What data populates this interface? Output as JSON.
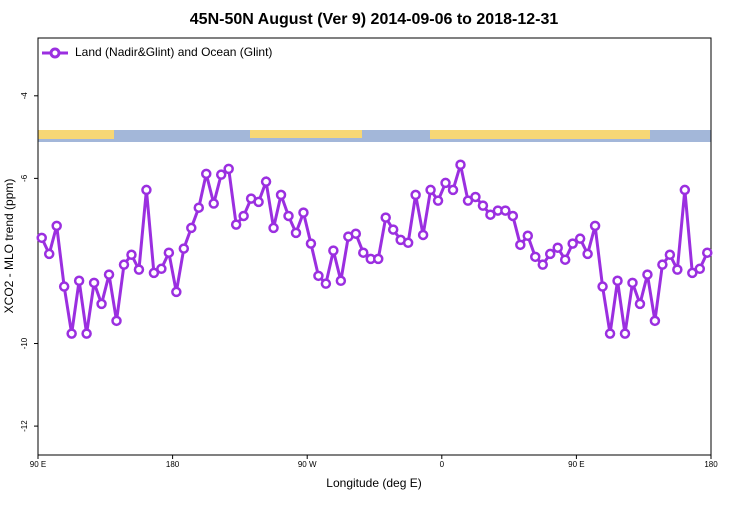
{
  "chart_data": {
    "type": "line",
    "title": "45N-50N August (Ver 9)   2014-09-06 to 2018-12-31",
    "x_label": "Longitude (deg E)",
    "y_label": "XCO2 - MLO trend (ppm)",
    "x": [
      92.5,
      97.5,
      102.5,
      107.5,
      112.5,
      117.5,
      122.5,
      127.5,
      132.5,
      137.5,
      142.5,
      147.5,
      152.5,
      157.5,
      162.5,
      167.5,
      172.5,
      177.5,
      182.5,
      187.5,
      192.5,
      197.5,
      202.5,
      207.5,
      212.5,
      217.5,
      222.5,
      227.5,
      232.5,
      237.5,
      242.5,
      247.5,
      252.5,
      257.5,
      262.5,
      267.5,
      272.5,
      277.5,
      282.5,
      287.5,
      292.5,
      297.5,
      302.5,
      307.5,
      312.5,
      317.5,
      322.5,
      327.5,
      332.5,
      337.5,
      342.5,
      347.5,
      352.5,
      357.5,
      362.5,
      367.5,
      372.5,
      377.5,
      382.5,
      387.5,
      392.5,
      397.5,
      402.5,
      407.5,
      412.5,
      417.5,
      422.5,
      427.5,
      432.5,
      437.5,
      442.5,
      447.5,
      452.5,
      457.5,
      462.5,
      467.5,
      472.5,
      477.5,
      482.5,
      487.5,
      492.5,
      497.5,
      502.5,
      507.5,
      512.5,
      517.5,
      522.5,
      527.5,
      532.5,
      537.5
    ],
    "series": [
      {
        "name": "Land (Nadir&Glint) and Ocean (Glint)",
        "color": "#9b2fe0",
        "values": [
          -7.44,
          -7.83,
          -7.15,
          -8.62,
          -9.76,
          -8.48,
          -9.76,
          -8.53,
          -9.04,
          -8.33,
          -9.45,
          -8.09,
          -7.85,
          -8.21,
          -6.28,
          -8.29,
          -8.19,
          -7.8,
          -8.75,
          -7.7,
          -7.2,
          -6.71,
          -5.89,
          -6.61,
          -5.91,
          -5.77,
          -7.12,
          -6.91,
          -6.49,
          -6.57,
          -6.08,
          -7.2,
          -6.4,
          -6.91,
          -7.32,
          -6.83,
          -7.58,
          -8.36,
          -8.55,
          -7.75,
          -8.48,
          -7.41,
          -7.34,
          -7.8,
          -7.95,
          -7.95,
          -6.95,
          -7.24,
          -7.49,
          -7.56,
          -6.4,
          -7.37,
          -6.28,
          -6.54,
          -6.11,
          -6.28,
          -5.67,
          -6.54,
          -6.45,
          -6.66,
          -6.88,
          -6.78,
          -6.78,
          -6.91,
          -7.61,
          -7.39,
          -7.9,
          -8.09,
          -7.83,
          -7.68,
          -7.97,
          -7.58,
          -7.46,
          -7.83,
          -7.15,
          -8.62,
          -9.76,
          -8.48,
          -9.76,
          -8.53,
          -9.04,
          -8.33,
          -9.45,
          -8.09,
          -7.85,
          -8.21,
          -6.28,
          -8.29,
          -8.19,
          -7.8
        ]
      }
    ],
    "xlim": [
      90,
      540
    ],
    "xticks": [
      {
        "value": 90,
        "label": "90 E"
      },
      {
        "value": 180,
        "label": "180"
      },
      {
        "value": 270,
        "label": "90 W"
      },
      {
        "value": 360,
        "label": "0"
      },
      {
        "value": 450,
        "label": "90 E"
      },
      {
        "value": 540,
        "label": "180"
      }
    ],
    "ylim": [
      -12.7,
      -2.6
    ],
    "yticks": [
      -4,
      -6,
      -10,
      -12
    ],
    "legend": "upper left"
  }
}
